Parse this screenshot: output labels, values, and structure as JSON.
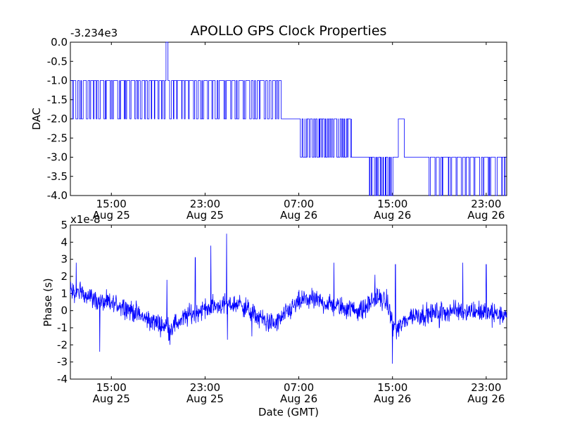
{
  "title": "APOLLO GPS Clock Properties",
  "colors": {
    "line": "#0000ff",
    "axes": "#000000",
    "background": "#ffffff"
  },
  "chart_data": [
    {
      "type": "line",
      "ylabel": "DAC",
      "offset_text": "-3.234e3",
      "ylim": [
        -4.0,
        0.0
      ],
      "yticks": [
        "0.0",
        "-0.5",
        "-1.0",
        "-1.5",
        "-2.0",
        "-2.5",
        "-3.0",
        "-3.5",
        "-4.0"
      ],
      "yticks_values": [
        0.0,
        -0.5,
        -1.0,
        -1.5,
        -2.0,
        -2.5,
        -3.0,
        -3.5,
        -4.0
      ],
      "xlim": [
        "2014-08-25T11:30",
        "2014-08-27T00:45"
      ],
      "xticks": [
        {
          "time": "2014-08-25T15:00",
          "line1": "15:00",
          "line2": "Aug 25"
        },
        {
          "time": "2014-08-25T23:00",
          "line1": "23:00",
          "line2": "Aug 25"
        },
        {
          "time": "2014-08-26T07:00",
          "line1": "07:00",
          "line2": "Aug 26"
        },
        {
          "time": "2014-08-26T15:00",
          "line1": "15:00",
          "line2": "Aug 26"
        },
        {
          "time": "2014-08-26T23:00",
          "line1": "23:00",
          "line2": "Aug 26"
        }
      ],
      "segments": [
        {
          "start": "2014-08-25T11:30",
          "end": "2014-08-25T19:40",
          "base": -1.0,
          "spike": -2.0,
          "spikes": 28
        },
        {
          "start": "2014-08-25T19:40",
          "end": "2014-08-25T19:50",
          "base": 0.0
        },
        {
          "start": "2014-08-25T19:50",
          "end": "2014-08-26T05:30",
          "base": -1.0,
          "spike": -2.0,
          "spikes": 30
        },
        {
          "start": "2014-08-26T05:30",
          "end": "2014-08-26T07:00",
          "base": -2.0
        },
        {
          "start": "2014-08-26T07:00",
          "end": "2014-08-26T11:30",
          "base": -2.0,
          "spike": -3.0,
          "spikes": 22
        },
        {
          "start": "2014-08-26T11:30",
          "end": "2014-08-26T13:00",
          "base": -3.0
        },
        {
          "start": "2014-08-26T13:00",
          "end": "2014-08-26T15:00",
          "base": -3.0,
          "spike": -4.0,
          "spikes": 12
        },
        {
          "start": "2014-08-26T15:00",
          "end": "2014-08-26T15:30",
          "base": -3.0
        },
        {
          "start": "2014-08-26T15:30",
          "end": "2014-08-26T16:00",
          "base": -2.0
        },
        {
          "start": "2014-08-26T16:00",
          "end": "2014-08-26T18:00",
          "base": -3.0
        },
        {
          "start": "2014-08-26T18:00",
          "end": "2014-08-27T00:45",
          "base": -3.0,
          "spike": -4.0,
          "spikes": 18
        }
      ]
    },
    {
      "type": "line",
      "ylabel": "Phase (s)",
      "xlabel": "Date (GMT)",
      "offset_text": "x1e-8",
      "ylim": [
        -4,
        5
      ],
      "yticks": [
        "5",
        "4",
        "3",
        "2",
        "1",
        "0",
        "-1",
        "-2",
        "-3",
        "-4"
      ],
      "yticks_values": [
        5,
        4,
        3,
        2,
        1,
        0,
        -1,
        -2,
        -3,
        -4
      ],
      "xlim": [
        "2014-08-25T11:30",
        "2014-08-27T00:45"
      ],
      "xticks": [
        {
          "time": "2014-08-25T15:00",
          "line1": "15:00",
          "line2": "Aug 25"
        },
        {
          "time": "2014-08-25T23:00",
          "line1": "23:00",
          "line2": "Aug 25"
        },
        {
          "time": "2014-08-26T07:00",
          "line1": "07:00",
          "line2": "Aug 26"
        },
        {
          "time": "2014-08-26T15:00",
          "line1": "15:00",
          "line2": "Aug 26"
        },
        {
          "time": "2014-08-26T23:00",
          "line1": "23:00",
          "line2": "Aug 26"
        }
      ],
      "anchors": [
        {
          "time": "2014-08-25T11:30",
          "y": 1.0
        },
        {
          "time": "2014-08-25T12:30",
          "y": 1.1
        },
        {
          "time": "2014-08-25T14:00",
          "y": 0.5
        },
        {
          "time": "2014-08-25T16:00",
          "y": 0.3
        },
        {
          "time": "2014-08-25T18:00",
          "y": -0.5
        },
        {
          "time": "2014-08-25T20:00",
          "y": -1.0
        },
        {
          "time": "2014-08-25T21:30",
          "y": -0.3
        },
        {
          "time": "2014-08-25T22:30",
          "y": 0.0
        },
        {
          "time": "2014-08-26T00:00",
          "y": 0.3
        },
        {
          "time": "2014-08-26T02:00",
          "y": 0.4
        },
        {
          "time": "2014-08-26T03:30",
          "y": -0.4
        },
        {
          "time": "2014-08-26T05:00",
          "y": -0.8
        },
        {
          "time": "2014-08-26T06:30",
          "y": 0.2
        },
        {
          "time": "2014-08-26T07:30",
          "y": 0.7
        },
        {
          "time": "2014-08-26T09:00",
          "y": 0.5
        },
        {
          "time": "2014-08-26T10:30",
          "y": 0.2
        },
        {
          "time": "2014-08-26T12:30",
          "y": 0.0
        },
        {
          "time": "2014-08-26T13:30",
          "y": 0.8
        },
        {
          "time": "2014-08-26T14:30",
          "y": 0.5
        },
        {
          "time": "2014-08-26T15:15",
          "y": -1.2
        },
        {
          "time": "2014-08-26T16:30",
          "y": -0.3
        },
        {
          "time": "2014-08-26T18:00",
          "y": -0.2
        },
        {
          "time": "2014-08-26T20:00",
          "y": 0.0
        },
        {
          "time": "2014-08-26T22:00",
          "y": 0.0
        },
        {
          "time": "2014-08-27T00:45",
          "y": -0.3
        }
      ],
      "noise": 0.45,
      "peaks": [
        {
          "time": "2014-08-25T12:00",
          "y": 2.8
        },
        {
          "time": "2014-08-25T14:00",
          "y": -2.4
        },
        {
          "time": "2014-08-25T19:45",
          "y": 1.8
        },
        {
          "time": "2014-08-25T20:00",
          "y": -2.0
        },
        {
          "time": "2014-08-25T22:10",
          "y": 3.1
        },
        {
          "time": "2014-08-25T23:30",
          "y": 3.8
        },
        {
          "time": "2014-08-26T00:50",
          "y": 4.5
        },
        {
          "time": "2014-08-26T00:55",
          "y": -1.7
        },
        {
          "time": "2014-08-26T03:00",
          "y": -1.5
        },
        {
          "time": "2014-08-26T10:00",
          "y": 2.8
        },
        {
          "time": "2014-08-26T13:30",
          "y": 2.1
        },
        {
          "time": "2014-08-26T15:15",
          "y": 2.7
        },
        {
          "time": "2014-08-26T15:00",
          "y": -3.1
        },
        {
          "time": "2014-08-26T19:00",
          "y": -1.0
        },
        {
          "time": "2014-08-26T21:00",
          "y": 2.8
        },
        {
          "time": "2014-08-26T23:00",
          "y": 2.7
        },
        {
          "time": "2014-08-26T23:30",
          "y": -1.0
        }
      ]
    }
  ]
}
